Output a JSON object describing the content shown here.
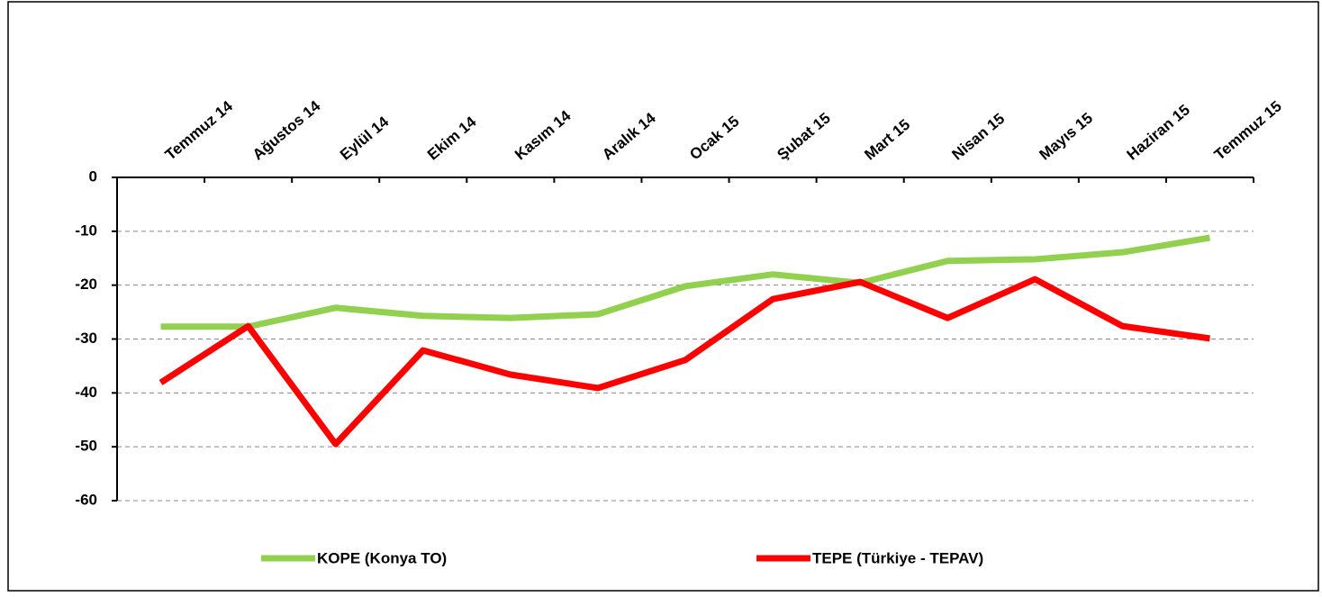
{
  "chart_data": {
    "type": "line",
    "categories": [
      "Temmuz 14",
      "Ağustos 14",
      "Eylül 14",
      "Ekim 14",
      "Kasım 14",
      "Aralık 14",
      "Ocak 15",
      "Şubat 15",
      "Mart 15",
      "Nisan 15",
      "Mayıs 15",
      "Haziran 15",
      "Temmuz 15"
    ],
    "series": [
      {
        "name": "KOPE (Konya TO)",
        "color": "#92d050",
        "values": [
          -27.7,
          -27.7,
          -24.2,
          -25.7,
          -26.1,
          -25.4,
          -20.2,
          -18,
          -19.6,
          -15.5,
          -15.2,
          -13.9,
          -11.2
        ]
      },
      {
        "name": "TEPE (Türkiye - TEPAV)",
        "color": "#ff0000",
        "values": [
          -38.1,
          -27.6,
          -49.5,
          -32.1,
          -36.6,
          -39.1,
          -33.9,
          -22.6,
          -19.4,
          -26.1,
          -18.9,
          -27.6,
          -29.9
        ]
      }
    ],
    "ylim": [
      -60,
      0
    ],
    "yticks": [
      0,
      -10,
      -20,
      -30,
      -40,
      -50,
      -60
    ],
    "grid": true,
    "legend": "bottom"
  }
}
